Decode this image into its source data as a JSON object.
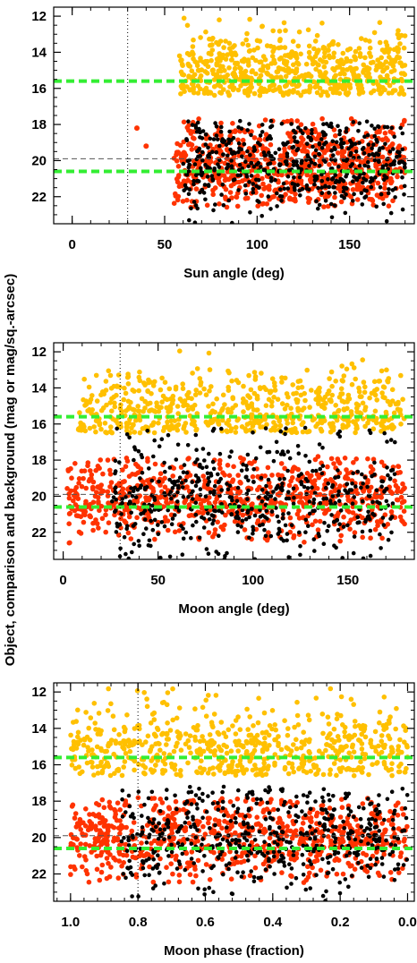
{
  "figure": {
    "shared_ylabel": "Object, comparison and background (mag or mag/sq.-arcsec)"
  },
  "colors": {
    "object": "#ff3300",
    "comparison": "#ffc000",
    "background": "#000000",
    "reference_line": "#33ee33",
    "dashed_line": "#555555",
    "cutoff_line": "#000000"
  },
  "chart_data": [
    {
      "type": "scatter",
      "xlabel": "Sun angle (deg)",
      "xlim": [
        -10,
        185
      ],
      "ylim": [
        23.5,
        11.5
      ],
      "xticks": [
        0,
        50,
        100,
        150
      ],
      "xtick_labels": [
        "0",
        "50",
        "100",
        "150"
      ],
      "yticks": [
        12,
        14,
        16,
        18,
        20,
        22
      ],
      "ytick_labels": [
        "12",
        "14",
        "16",
        "18",
        "20",
        "22"
      ],
      "vline": 30,
      "reference_lines": [
        15.6,
        20.6
      ],
      "dashed_lines": [
        19.9
      ],
      "series": [
        {
          "role": "comparison",
          "color": "#ffc000",
          "x_range": [
            58,
            180
          ],
          "y_range": [
            12.0,
            16.4
          ],
          "y_center": 15.0
        },
        {
          "role": "object",
          "color": "#ff3300",
          "x_range": [
            55,
            180
          ],
          "y_range": [
            17.6,
            22.6
          ],
          "y_center": 20.3
        },
        {
          "role": "background",
          "color": "#000000",
          "x_range": [
            60,
            180
          ],
          "y_range": [
            17.8,
            23.5
          ],
          "y_center": 20.2
        },
        {
          "role": "object",
          "color": "#ff3300",
          "points": [
            [
              35,
              18.2
            ],
            [
              40,
              19.2
            ]
          ]
        }
      ]
    },
    {
      "type": "scatter",
      "xlabel": "Moon angle (deg)",
      "xlim": [
        -5,
        185
      ],
      "ylim": [
        23.5,
        11.5
      ],
      "xticks": [
        0,
        50,
        100,
        150
      ],
      "xtick_labels": [
        "0",
        "50",
        "100",
        "150"
      ],
      "yticks": [
        12,
        14,
        16,
        18,
        20,
        22
      ],
      "ytick_labels": [
        "12",
        "14",
        "16",
        "18",
        "20",
        "22"
      ],
      "vline": 30,
      "reference_lines": [
        15.6,
        20.6
      ],
      "dashed_lines": [
        19.9
      ],
      "series": [
        {
          "role": "comparison",
          "color": "#ffc000",
          "x_range": [
            8,
            180
          ],
          "y_range": [
            11.8,
            16.5
          ],
          "y_center": 15.2
        },
        {
          "role": "object",
          "color": "#ff3300",
          "x_range": [
            2,
            180
          ],
          "y_range": [
            17.8,
            22.6
          ],
          "y_center": 20.1
        },
        {
          "role": "background",
          "color": "#000000",
          "x_range": [
            25,
            175
          ],
          "y_range": [
            16.2,
            23.5
          ],
          "y_center": 20.0
        }
      ]
    },
    {
      "type": "scatter",
      "xlabel": "Moon phase (fraction)",
      "xlim": [
        1.05,
        -0.02
      ],
      "ylim": [
        23.5,
        11.5
      ],
      "xticks": [
        1.0,
        0.8,
        0.6,
        0.4,
        0.2,
        0.0
      ],
      "xtick_labels": [
        "1.0",
        "0.8",
        "0.6",
        "0.4",
        "0.2",
        "0.0"
      ],
      "yticks": [
        12,
        14,
        16,
        18,
        20,
        22
      ],
      "ytick_labels": [
        "12",
        "14",
        "16",
        "18",
        "20",
        "22"
      ],
      "vline": 0.8,
      "reference_lines": [
        15.6,
        20.6
      ],
      "dashed_lines": [
        19.9
      ],
      "series": [
        {
          "role": "comparison",
          "color": "#ffc000",
          "x_range": [
            0.0,
            1.0
          ],
          "y_range": [
            11.8,
            16.6
          ],
          "y_center": 15.0
        },
        {
          "role": "object",
          "color": "#ff3300",
          "x_range": [
            0.0,
            1.0
          ],
          "y_range": [
            17.8,
            22.5
          ],
          "y_center": 20.0
        },
        {
          "role": "background",
          "color": "#000000",
          "x_range": [
            0.0,
            0.85
          ],
          "y_range": [
            17.2,
            23.5
          ],
          "y_center": 20.0
        }
      ]
    }
  ]
}
